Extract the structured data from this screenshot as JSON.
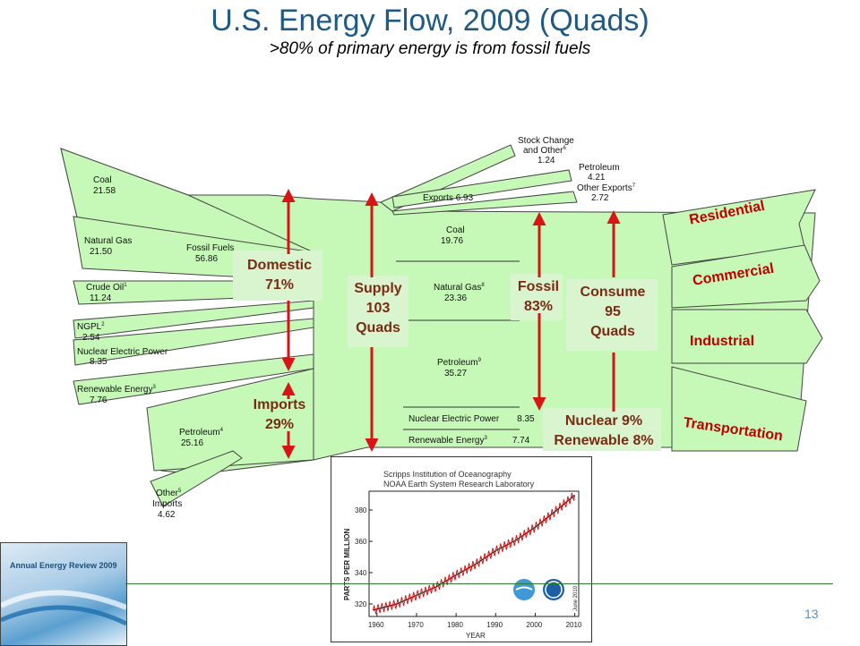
{
  "slide": {
    "title": "U.S. Energy Flow, 2009 (Quads)",
    "subtitle": ">80% of primary energy is from fossil fuels",
    "page_number": "13"
  },
  "flow": {
    "sources": [
      {
        "name": "Coal",
        "value": "21.58"
      },
      {
        "name": "Natural Gas",
        "value": "21.50"
      },
      {
        "name": "Crude Oil",
        "sup": "1",
        "value": "11.24"
      },
      {
        "name": "NGPL",
        "sup": "2",
        "value": "2.54"
      },
      {
        "name": "Nuclear Electric Power",
        "value": "8.35"
      },
      {
        "name": "Renewable Energy",
        "sup": "3",
        "value": "7.76"
      },
      {
        "name": "Petroleum",
        "sup": "4",
        "value": "25.16"
      },
      {
        "name": "Other",
        "sup": "5",
        "name2": "Imports",
        "value": "4.62"
      }
    ],
    "fossil_fuels": {
      "name": "Fossil Fuels",
      "value": "56.86"
    },
    "exports": {
      "stock_change": {
        "line1": "Stock Change",
        "line2": "and Other",
        "sup": "6",
        "value": "1.24"
      },
      "petroleum": {
        "name": "Petroleum",
        "value": "4.21"
      },
      "other_exports": {
        "name": "Other Exports",
        "sup": "7",
        "value": "2.72"
      },
      "total": {
        "name": "Exports",
        "value": "6.93"
      }
    },
    "consumption": [
      {
        "name": "Coal",
        "value": "19.76"
      },
      {
        "name": "Natural Gas",
        "sup": "8",
        "value": "23.36"
      },
      {
        "name": "Petroleum",
        "sup": "9",
        "value": "35.27"
      },
      {
        "name": "Nuclear Electric Power",
        "value": "8.35"
      },
      {
        "name": "Renewable Energy",
        "sup": "3",
        "value": "7.74"
      }
    ],
    "sectors": [
      "Residential",
      "Commercial",
      "Industrial",
      "Transportation"
    ]
  },
  "callouts": {
    "domestic": {
      "line1": "Domestic",
      "line2": "71%"
    },
    "imports": {
      "line1": "Imports",
      "line2": "29%"
    },
    "supply": {
      "line1": "Supply",
      "line2": "103",
      "line3": "Quads"
    },
    "fossil": {
      "line1": "Fossil",
      "line2": "83%"
    },
    "consume": {
      "line1": "Consume",
      "line2": "95",
      "line3": "Quads"
    },
    "nuclear_renewable": {
      "line1": "Nuclear 9%",
      "line2": "Renewable 8%"
    }
  },
  "co2_chart": {
    "header_line1": "Scripps Institution of Oceanography",
    "header_line2": "NOAA Earth System Research Laboratory",
    "ylabel": "PARTS PER MILLION",
    "xlabel": "YEAR",
    "date_note": "June 2010",
    "xticks": [
      "1960",
      "1970",
      "1980",
      "1990",
      "2000",
      "2010"
    ],
    "yticks": [
      "320",
      "340",
      "360",
      "380"
    ],
    "xlim": [
      1958,
      2011
    ],
    "ylim": [
      312,
      392
    ],
    "trend": [
      [
        1959,
        316
      ],
      [
        1965,
        320
      ],
      [
        1970,
        325.5
      ],
      [
        1975,
        331
      ],
      [
        1980,
        338.5
      ],
      [
        1985,
        345.5
      ],
      [
        1990,
        354
      ],
      [
        1995,
        360.5
      ],
      [
        2000,
        369
      ],
      [
        2005,
        379
      ],
      [
        2010,
        389.5
      ]
    ],
    "colors": {
      "trend": "#cc1b1b",
      "axis": "#222222"
    }
  },
  "report_cover": {
    "title": "Annual Energy Review 2009"
  },
  "colors": {
    "flow_fill": "#c6f8b8",
    "flow_stroke": "#444444",
    "arrow_red": "#d81515",
    "callout_bg": "#d8f5d0"
  }
}
